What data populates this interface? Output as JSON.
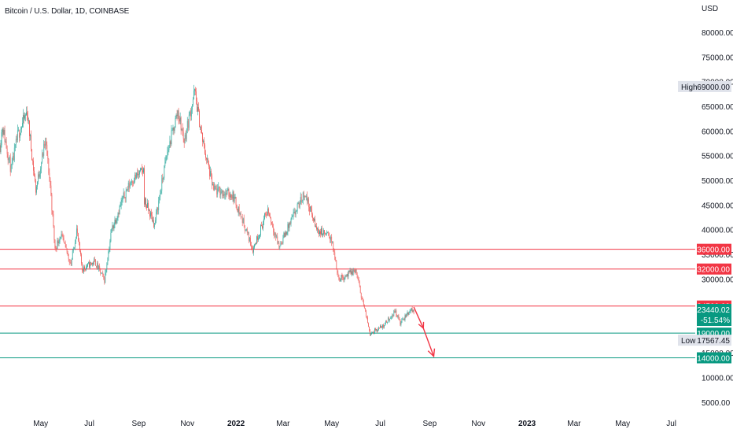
{
  "header": {
    "title": "Bitcoin / U.S. Dollar, 1D, COINBASE"
  },
  "axis": {
    "currency": "USD",
    "y_ticks": [
      {
        "v": 80000,
        "label": "80000.00"
      },
      {
        "v": 75000,
        "label": "75000.00"
      },
      {
        "v": 70000,
        "label": "70000.00"
      },
      {
        "v": 65000,
        "label": "65000.00"
      },
      {
        "v": 60000,
        "label": "60000.00"
      },
      {
        "v": 55000,
        "label": "55000.00"
      },
      {
        "v": 50000,
        "label": "50000.00"
      },
      {
        "v": 45000,
        "label": "45000.00"
      },
      {
        "v": 40000,
        "label": "40000.00"
      },
      {
        "v": 35000,
        "label": "35000.00"
      },
      {
        "v": 30000,
        "label": "30000.00"
      },
      {
        "v": 15000,
        "label": "15000.00"
      },
      {
        "v": 10000,
        "label": "10000.00"
      },
      {
        "v": 5000,
        "label": "5000.00"
      }
    ],
    "x_ticks": [
      {
        "date": "2021-05-01",
        "label": "May",
        "bold": false
      },
      {
        "date": "2021-07-01",
        "label": "Jul",
        "bold": false
      },
      {
        "date": "2021-09-01",
        "label": "Sep",
        "bold": false
      },
      {
        "date": "2021-11-01",
        "label": "Nov",
        "bold": false
      },
      {
        "date": "2022-01-01",
        "label": "2022",
        "bold": true
      },
      {
        "date": "2022-03-01",
        "label": "Mar",
        "bold": false
      },
      {
        "date": "2022-05-01",
        "label": "May",
        "bold": false
      },
      {
        "date": "2022-07-01",
        "label": "Jul",
        "bold": false
      },
      {
        "date": "2022-09-01",
        "label": "Sep",
        "bold": false
      },
      {
        "date": "2022-11-01",
        "label": "Nov",
        "bold": false
      },
      {
        "date": "2023-01-01",
        "label": "2023",
        "bold": true
      },
      {
        "date": "2023-03-01",
        "label": "Mar",
        "bold": false
      },
      {
        "date": "2023-05-01",
        "label": "May",
        "bold": false
      },
      {
        "date": "2023-07-01",
        "label": "Jul",
        "bold": false
      }
    ]
  },
  "colors": {
    "up": "#26a69a",
    "down": "#ef5350",
    "resistance": "#f23645",
    "support": "#089981",
    "arrow": "#f23645",
    "tag_gray_bg": "#e0e3eb"
  },
  "levels": [
    {
      "price": 36000,
      "label": "36000.00",
      "kind": "resistance"
    },
    {
      "price": 32000,
      "label": "32000.00",
      "kind": "resistance"
    },
    {
      "price": 24500,
      "label": "24500.00",
      "kind": "resistance"
    },
    {
      "price": 19000,
      "label": "19000.00",
      "kind": "support"
    },
    {
      "price": 14000,
      "label": "14000.00",
      "kind": "support"
    }
  ],
  "markers": {
    "high": {
      "text": "High",
      "value": "69000.00",
      "price": 69000
    },
    "low": {
      "text": "Low",
      "value": "17567.45",
      "price": 17567.45
    },
    "last": {
      "value": "23440.02",
      "change": "-51.54%",
      "price": 23440.02
    }
  },
  "projection": {
    "points": [
      {
        "date": "2022-08-12",
        "price": 24300
      },
      {
        "date": "2022-08-24",
        "price": 20000
      },
      {
        "date": "2022-09-06",
        "price": 14300
      }
    ]
  },
  "chart_data": {
    "type": "candlestick",
    "title": "Bitcoin / U.S. Dollar, 1D, COINBASE",
    "ylabel": "USD",
    "ylim": [
      0,
      84000
    ],
    "xlim": [
      "2021-03-11",
      "2023-07-31"
    ],
    "grid": false,
    "price_anchors": [
      [
        "2021-03-11",
        57000
      ],
      [
        "2021-03-14",
        61000
      ],
      [
        "2021-03-25",
        52000
      ],
      [
        "2021-04-02",
        59000
      ],
      [
        "2021-04-14",
        64000
      ],
      [
        "2021-04-25",
        48000
      ],
      [
        "2021-05-07",
        58000
      ],
      [
        "2021-05-13",
        49000
      ],
      [
        "2021-05-19",
        36000
      ],
      [
        "2021-05-26",
        39000
      ],
      [
        "2021-06-08",
        33000
      ],
      [
        "2021-06-15",
        40000
      ],
      [
        "2021-06-22",
        32000
      ],
      [
        "2021-07-08",
        33500
      ],
      [
        "2021-07-20",
        29800
      ],
      [
        "2021-07-29",
        40000
      ],
      [
        "2021-08-14",
        47000
      ],
      [
        "2021-08-23",
        50000
      ],
      [
        "2021-09-07",
        52000
      ],
      [
        "2021-09-08",
        46000
      ],
      [
        "2021-09-21",
        41000
      ],
      [
        "2021-10-06",
        55000
      ],
      [
        "2021-10-20",
        64000
      ],
      [
        "2021-10-28",
        58000
      ],
      [
        "2021-11-10",
        68000
      ],
      [
        "2021-11-20",
        58000
      ],
      [
        "2021-12-04",
        48000
      ],
      [
        "2021-12-28",
        47000
      ],
      [
        "2022-01-10",
        41500
      ],
      [
        "2022-01-22",
        36000
      ],
      [
        "2022-02-10",
        44000
      ],
      [
        "2022-02-24",
        36500
      ],
      [
        "2022-03-28",
        47500
      ],
      [
        "2022-04-12",
        40000
      ],
      [
        "2022-04-30",
        38500
      ],
      [
        "2022-05-10",
        30000
      ],
      [
        "2022-05-31",
        31700
      ],
      [
        "2022-06-13",
        22500
      ],
      [
        "2022-06-18",
        19000
      ],
      [
        "2022-07-05",
        20500
      ],
      [
        "2022-07-20",
        23500
      ],
      [
        "2022-07-26",
        21000
      ],
      [
        "2022-08-08",
        23800
      ],
      [
        "2022-08-12",
        23440
      ]
    ]
  }
}
